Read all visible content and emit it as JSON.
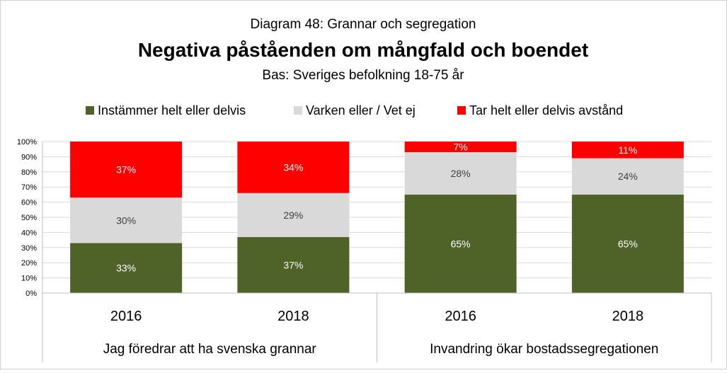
{
  "chart_data": {
    "type": "bar",
    "stacked": true,
    "supertitle": "Diagram 48: Grannar och segregation",
    "title": "Negativa påståenden om mångfald och boendet",
    "subtitle": "Bas: Sveriges befolkning 18-75 år",
    "legend_position": "top",
    "ylim": [
      0,
      100
    ],
    "y_ticks": [
      "0%",
      "10%",
      "20%",
      "30%",
      "40%",
      "50%",
      "60%",
      "70%",
      "80%",
      "90%",
      "100%"
    ],
    "categories": [
      "2016",
      "2018",
      "2016",
      "2018"
    ],
    "groups": [
      {
        "label": "Jag föredrar att ha svenska grannar",
        "categories": [
          0,
          1
        ]
      },
      {
        "label": "Invandring ökar bostadssegregationen",
        "categories": [
          2,
          3
        ]
      }
    ],
    "series": [
      {
        "name": "Instämmer helt eller delvis",
        "color": "#4f6228",
        "label_color": "#ffffff",
        "values": [
          33,
          37,
          65,
          65
        ],
        "labels": [
          "33%",
          "37%",
          "65%",
          "65%"
        ]
      },
      {
        "name": "Varken eller / Vet ej",
        "color": "#d9d9d9",
        "label_color": "#404040",
        "values": [
          30,
          29,
          28,
          24
        ],
        "labels": [
          "30%",
          "29%",
          "28%",
          "24%"
        ]
      },
      {
        "name": "Tar helt eller delvis avstånd",
        "color": "#ff0000",
        "label_color": "#ffffff",
        "values": [
          37,
          34,
          7,
          11
        ],
        "labels": [
          "37%",
          "34%",
          "7%",
          "11%"
        ]
      }
    ]
  }
}
